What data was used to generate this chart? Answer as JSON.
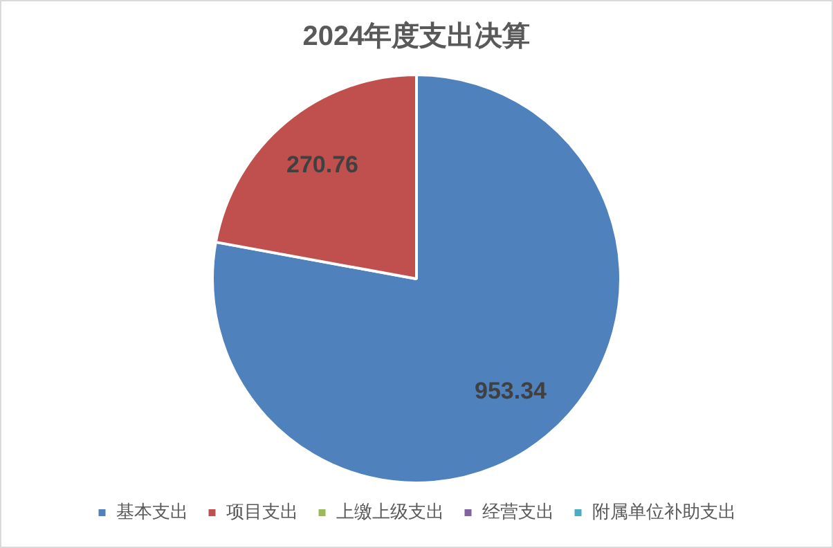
{
  "chart_data": {
    "type": "pie",
    "title": "2024年度支出决算",
    "categories": [
      "基本支出",
      "项目支出",
      "上缴上级支出",
      "经营支出",
      "附属单位补助支出"
    ],
    "values": [
      953.34,
      270.76,
      0,
      0,
      0
    ],
    "colors": [
      "#4f81bd",
      "#c0504d",
      "#9bbb59",
      "#8064a2",
      "#4bacc6"
    ],
    "value_labels": [
      "953.34",
      "270.76",
      null,
      null,
      null
    ],
    "legend": "bottom"
  }
}
